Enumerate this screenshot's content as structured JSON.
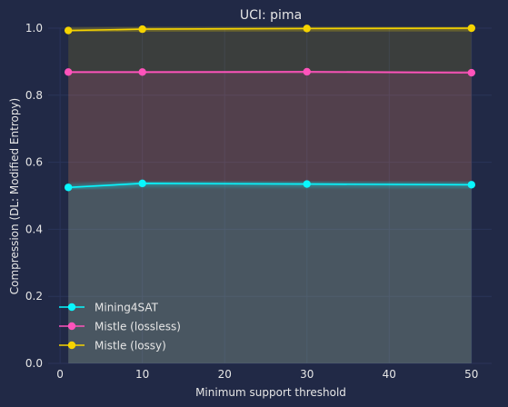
{
  "chart_data": {
    "type": "line",
    "title": "UCI: pima",
    "xlabel": "Minimum support threshold",
    "ylabel": "Compression (DL: Modified Entropy)",
    "xlim": [
      -1.45,
      52.45
    ],
    "ylim": [
      0.0,
      1.0
    ],
    "xticks": [
      0,
      10,
      20,
      30,
      40,
      50
    ],
    "yticks": [
      0.0,
      0.2,
      0.4,
      0.6,
      0.8,
      1.0
    ],
    "xtick_labels": [
      "0",
      "10",
      "20",
      "30",
      "40",
      "50"
    ],
    "ytick_labels": [
      "0.0",
      "0.2",
      "0.4",
      "0.6",
      "0.8",
      "1.0"
    ],
    "x": [
      1,
      10,
      30,
      50
    ],
    "grid": true,
    "legend_position": "lower-left",
    "series": [
      {
        "name": "Mining4SAT",
        "values": [
          0.525,
          0.537,
          0.535,
          0.533
        ],
        "color": "#08F7FE"
      },
      {
        "name": "Mistle (lossless)",
        "values": [
          0.869,
          0.869,
          0.87,
          0.867
        ],
        "color": "#FE53BB"
      },
      {
        "name": "Mistle (lossy)",
        "values": [
          0.993,
          0.997,
          0.999,
          1.0
        ],
        "color": "#F5D300"
      }
    ],
    "colors": {
      "background": "#212946",
      "grid": "#2A3459",
      "text": "#e6e6e6"
    }
  }
}
